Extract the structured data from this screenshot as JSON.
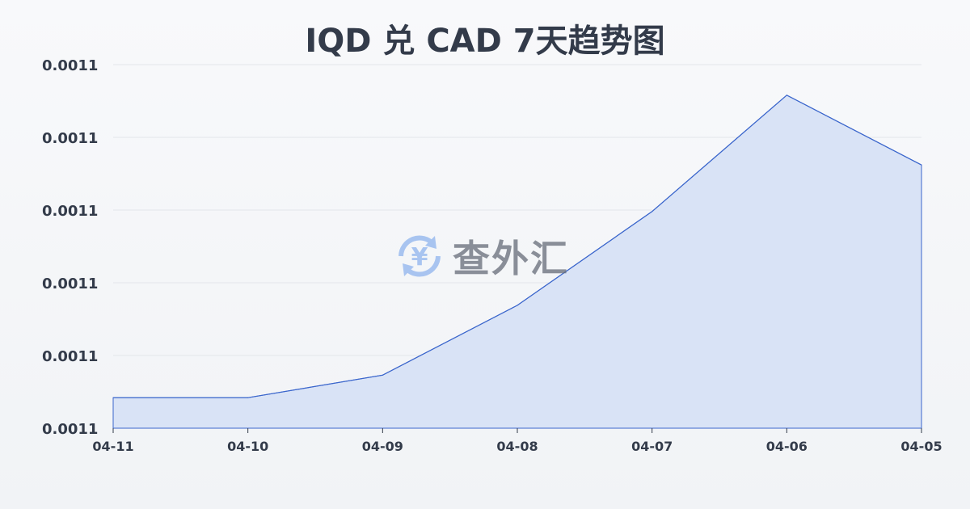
{
  "chart_data": {
    "type": "area",
    "title": "IQD 兑 CAD 7天趋势图",
    "xlabel": "",
    "ylabel": "",
    "categories": [
      "04-11",
      "04-10",
      "04-09",
      "04-08",
      "04-07",
      "04-06",
      "04-05"
    ],
    "values": [
      0.00110042,
      0.00110042,
      0.00110073,
      0.00110169,
      0.00110298,
      0.00110458,
      0.00110362
    ],
    "ylim": [
      0.0011,
      0.001105
    ],
    "yticks": [
      0.0011,
      0.001101,
      0.001102,
      0.001103,
      0.001104,
      0.001105
    ],
    "ytick_labels": [
      "0.0011",
      "0.0011",
      "0.0011",
      "0.0011",
      "0.0011",
      "0.0011"
    ],
    "grid": true,
    "colors": {
      "line": "#3b66cc",
      "fill": "#d9e3f6"
    }
  },
  "watermark": {
    "text": "查外汇",
    "icon": "yen-exchange-icon",
    "icon_color": "#8fb4ee"
  }
}
